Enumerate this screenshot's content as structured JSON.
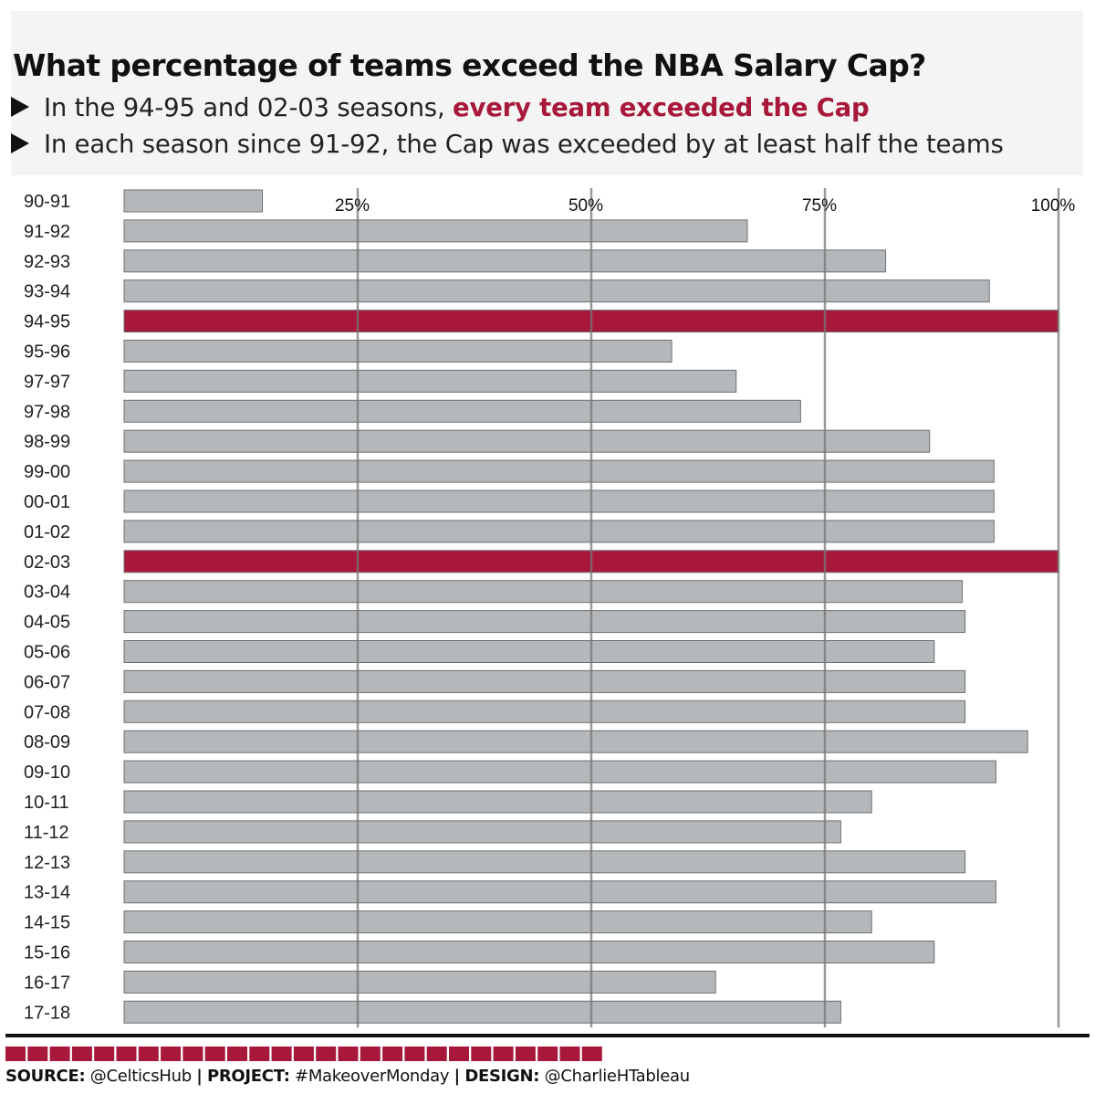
{
  "header": {
    "title": "What percentage of teams exceed the NBA Salary Cap?",
    "bullet1_prefix": "In the 94-95 and 02-03 seasons, ",
    "bullet1_highlight": "every team exceeded the Cap",
    "bullet2": "In each season since 91-92, the Cap was exceeded by at least half the teams"
  },
  "colors": {
    "highlight": "#a8183a",
    "bar": "#b5b8ba",
    "bar_stroke": "#6d6f70",
    "gridline": "#777777",
    "header_bg": "#f4f4f4"
  },
  "chart_data": {
    "type": "bar",
    "orientation": "horizontal",
    "categories": [
      "90-91",
      "91-92",
      "92-93",
      "93-94",
      "94-95",
      "95-96",
      "97-97",
      "97-98",
      "98-99",
      "99-00",
      "00-01",
      "01-02",
      "02-03",
      "03-04",
      "04-05",
      "05-06",
      "06-07",
      "07-08",
      "08-09",
      "09-10",
      "10-11",
      "11-12",
      "12-13",
      "13-14",
      "14-15",
      "15-16",
      "16-17",
      "17-18"
    ],
    "values": [
      14.8,
      66.7,
      81.5,
      92.6,
      100,
      58.6,
      65.5,
      72.4,
      86.2,
      93.1,
      93.1,
      93.1,
      100,
      89.7,
      90.0,
      86.7,
      90.0,
      90.0,
      96.7,
      93.3,
      80.0,
      76.7,
      90.0,
      93.3,
      80.0,
      86.7,
      63.3,
      76.7
    ],
    "highlighted": [
      "94-95",
      "02-03"
    ],
    "xlim": [
      0,
      100
    ],
    "x_ticks": [
      25,
      50,
      75,
      100
    ],
    "x_tick_labels": [
      "25%",
      "50%",
      "75%",
      "100%"
    ],
    "x_axis_position": "top",
    "grid": true
  },
  "footer": {
    "source_label": "SOURCE:",
    "source_value": "@CelticsHub",
    "project_label": "PROJECT:",
    "project_value": "#MakeoverMonday",
    "design_label": "DESIGN:",
    "design_value": "@CharlieHTableau",
    "separator": "|"
  }
}
